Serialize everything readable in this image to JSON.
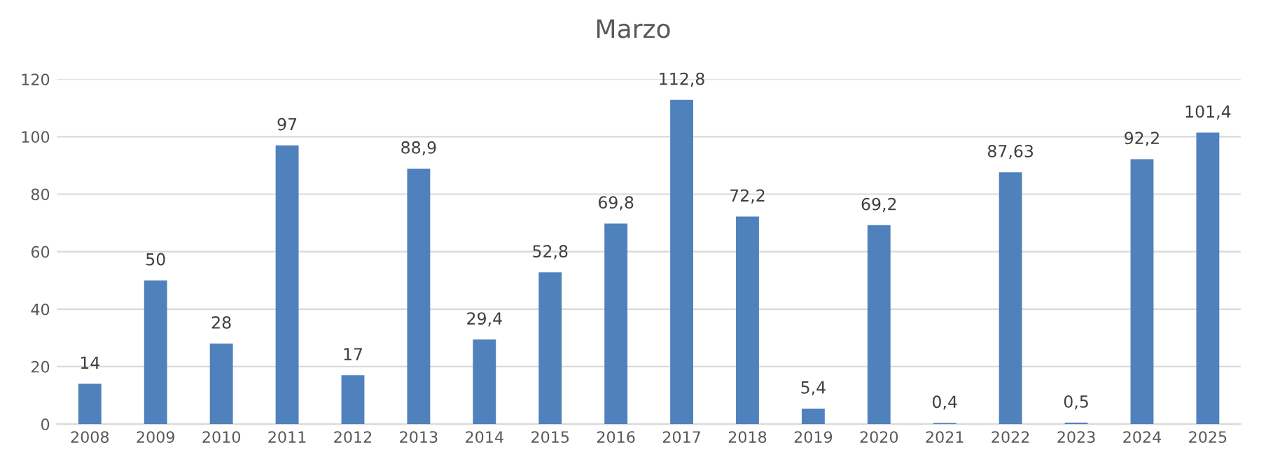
{
  "chart_data": {
    "type": "bar",
    "title": "Marzo",
    "categories": [
      "2008",
      "2009",
      "2010",
      "2011",
      "2012",
      "2013",
      "2014",
      "2015",
      "2016",
      "2017",
      "2018",
      "2019",
      "2020",
      "2021",
      "2022",
      "2023",
      "2024",
      "2025"
    ],
    "values": [
      14,
      50,
      28,
      97,
      17,
      88.9,
      29.4,
      52.8,
      69.8,
      112.8,
      72.2,
      5.4,
      69.2,
      0.4,
      87.63,
      0.5,
      92.2,
      101.4
    ],
    "value_labels": [
      "14",
      "50",
      "28",
      "97",
      "17",
      "88,9",
      "29,4",
      "52,8",
      "69,8",
      "112,8",
      "72,2",
      "5,4",
      "69,2",
      "0,4",
      "87,63",
      "0,5",
      "92,2",
      "101,4"
    ],
    "color": "#4f81bd",
    "ylim": [
      0,
      120
    ],
    "yticks": [
      0,
      20,
      40,
      60,
      80,
      100,
      120
    ],
    "grid": "y"
  }
}
